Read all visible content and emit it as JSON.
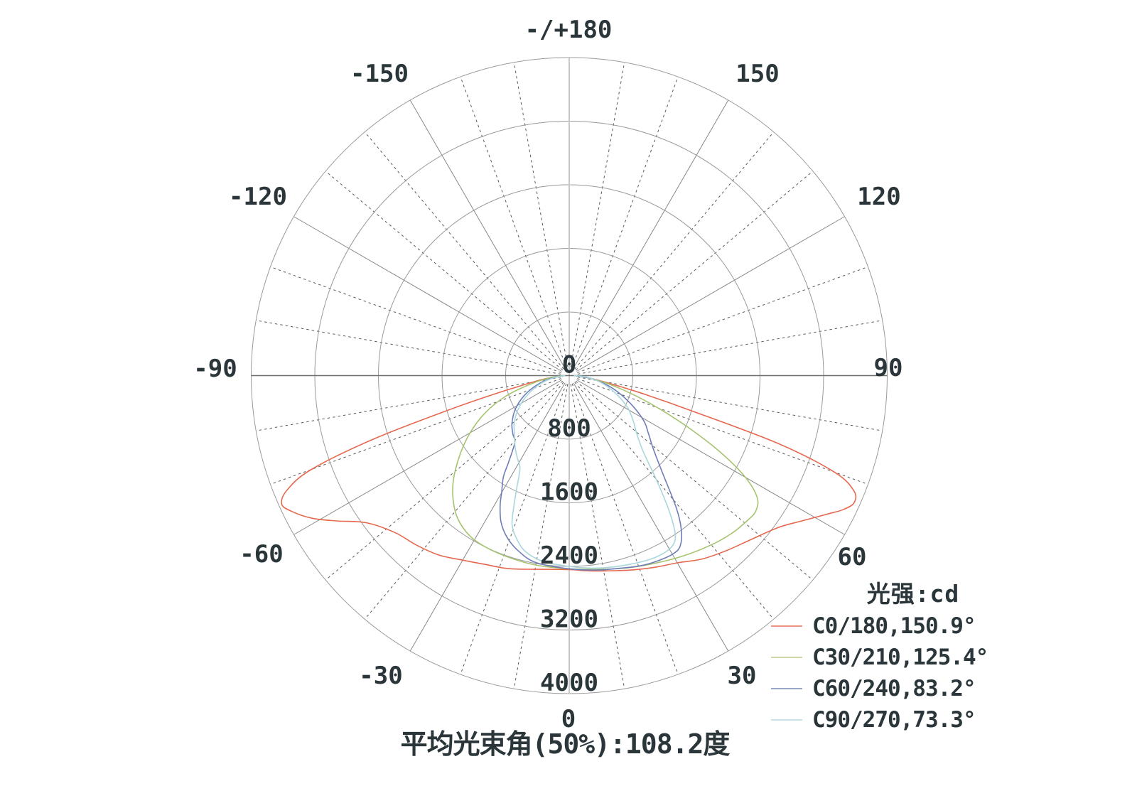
{
  "annotation": {
    "beam_angle_text": "平均光束角(50%):108.2度"
  },
  "legend": {
    "title": "光强:cd",
    "entries": [
      {
        "label": "C0/180,150.9°",
        "swatch_color": "#eb9480"
      },
      {
        "label": "C30/210,125.4°",
        "swatch_color": "#ccd9a4"
      },
      {
        "label": "C60/240,83.2°",
        "swatch_color": "#9aa6c8"
      },
      {
        "label": "C90/270,73.3°",
        "swatch_color": "#c6e2e6"
      }
    ]
  },
  "colors": {
    "text": "#2b363b",
    "ring_grid": "#9a9a9a",
    "radial_solid": "#888888",
    "radial_dashed": "#5a5a5a",
    "horizontal_axis": "#6e6e6e",
    "vertical_axis": "#c8c8c8"
  },
  "chart_data": {
    "type": "line",
    "subtype": "polar-intensity-distribution",
    "units": "cd",
    "title": "光强:cd",
    "angle_ticks": [
      {
        "angle": 180,
        "label": "-/+180"
      },
      {
        "angle": 150,
        "label": "150"
      },
      {
        "angle": 120,
        "label": "120"
      },
      {
        "angle": 90,
        "label": "90"
      },
      {
        "angle": 60,
        "label": "60"
      },
      {
        "angle": 30,
        "label": "30"
      },
      {
        "angle": 0,
        "label": "0"
      },
      {
        "angle": -30,
        "label": "-30"
      },
      {
        "angle": -60,
        "label": "-60"
      },
      {
        "angle": -90,
        "label": "-90"
      },
      {
        "angle": -120,
        "label": "-120"
      },
      {
        "angle": -150,
        "label": "-150"
      }
    ],
    "radial_ticks": [
      0,
      800,
      1600,
      2400,
      3200,
      4000
    ],
    "radial_max": 4000,
    "grid": {
      "ring_step_cd": 800,
      "radial_line_step_deg": 10,
      "solid_line_step_deg": 30,
      "grid_on": true
    },
    "legend_position": "bottom-right",
    "series": [
      {
        "name": "C0/180,150.9°",
        "color": "#e5684f",
        "points": [
          [
            -90,
            60
          ],
          [
            -86,
            150
          ],
          [
            -82,
            330
          ],
          [
            -78,
            640
          ],
          [
            -76,
            1000
          ],
          [
            -74,
            1600
          ],
          [
            -72,
            2600
          ],
          [
            -70,
            3450
          ],
          [
            -68,
            3820
          ],
          [
            -66,
            3960
          ],
          [
            -64,
            3890
          ],
          [
            -61,
            3700
          ],
          [
            -58,
            3450
          ],
          [
            -54,
            3150
          ],
          [
            -48,
            2950
          ],
          [
            -42,
            2870
          ],
          [
            -36,
            2790
          ],
          [
            -30,
            2680
          ],
          [
            -24,
            2600
          ],
          [
            -18,
            2550
          ],
          [
            -12,
            2490
          ],
          [
            -6,
            2450
          ],
          [
            0,
            2440
          ],
          [
            6,
            2470
          ],
          [
            12,
            2510
          ],
          [
            18,
            2570
          ],
          [
            24,
            2640
          ],
          [
            30,
            2720
          ],
          [
            36,
            2850
          ],
          [
            42,
            2960
          ],
          [
            48,
            3080
          ],
          [
            54,
            3250
          ],
          [
            58,
            3450
          ],
          [
            62,
            3700
          ],
          [
            64,
            3840
          ],
          [
            66,
            3925
          ],
          [
            68,
            3860
          ],
          [
            70,
            3550
          ],
          [
            72,
            2760
          ],
          [
            74,
            1580
          ],
          [
            76,
            1000
          ],
          [
            78,
            640
          ],
          [
            82,
            310
          ],
          [
            86,
            150
          ],
          [
            90,
            60
          ]
        ]
      },
      {
        "name": "C30/210,125.4°",
        "color": "#a6c36f",
        "points": [
          [
            -90,
            55
          ],
          [
            -84,
            230
          ],
          [
            -78,
            480
          ],
          [
            -72,
            840
          ],
          [
            -66,
            1160
          ],
          [
            -60,
            1440
          ],
          [
            -54,
            1700
          ],
          [
            -48,
            1960
          ],
          [
            -43,
            2140
          ],
          [
            -38,
            2280
          ],
          [
            -32,
            2370
          ],
          [
            -26,
            2400
          ],
          [
            -18,
            2410
          ],
          [
            -10,
            2420
          ],
          [
            0,
            2430
          ],
          [
            8,
            2460
          ],
          [
            16,
            2520
          ],
          [
            24,
            2590
          ],
          [
            32,
            2680
          ],
          [
            40,
            2780
          ],
          [
            46,
            2850
          ],
          [
            51,
            2890
          ],
          [
            54,
            2900
          ],
          [
            57,
            2820
          ],
          [
            60,
            2560
          ],
          [
            63,
            2150
          ],
          [
            66,
            1700
          ],
          [
            69,
            1300
          ],
          [
            72,
            980
          ],
          [
            76,
            640
          ],
          [
            80,
            400
          ],
          [
            85,
            190
          ],
          [
            90,
            55
          ]
        ]
      },
      {
        "name": "C60/240,83.2°",
        "color": "#6f7eb9",
        "points": [
          [
            -90,
            50
          ],
          [
            -82,
            220
          ],
          [
            -74,
            420
          ],
          [
            -66,
            620
          ],
          [
            -58,
            800
          ],
          [
            -50,
            940
          ],
          [
            -44,
            1020
          ],
          [
            -39,
            1090
          ],
          [
            -35,
            1330
          ],
          [
            -33,
            1520
          ],
          [
            -30,
            1700
          ],
          [
            -28,
            1850
          ],
          [
            -25,
            2030
          ],
          [
            -21,
            2180
          ],
          [
            -16,
            2300
          ],
          [
            -10,
            2390
          ],
          [
            0,
            2430
          ],
          [
            8,
            2470
          ],
          [
            14,
            2500
          ],
          [
            20,
            2550
          ],
          [
            25,
            2580
          ],
          [
            30,
            2595
          ],
          [
            33,
            2560
          ],
          [
            36,
            2400
          ],
          [
            39,
            2140
          ],
          [
            44,
            1680
          ],
          [
            49,
            1400
          ],
          [
            54,
            1230
          ],
          [
            59,
            1090
          ],
          [
            66,
            830
          ],
          [
            74,
            560
          ],
          [
            82,
            290
          ],
          [
            90,
            60
          ]
        ]
      },
      {
        "name": "C90/270,73.3°",
        "color": "#a9d7de",
        "points": [
          [
            -90,
            50
          ],
          [
            -82,
            200
          ],
          [
            -74,
            380
          ],
          [
            -66,
            560
          ],
          [
            -58,
            740
          ],
          [
            -50,
            900
          ],
          [
            -43,
            1010
          ],
          [
            -37,
            1130
          ],
          [
            -32,
            1230
          ],
          [
            -28,
            1320
          ],
          [
            -25,
            1560
          ],
          [
            -23,
            1780
          ],
          [
            -21,
            2005
          ],
          [
            -18,
            2150
          ],
          [
            -14,
            2280
          ],
          [
            -8,
            2360
          ],
          [
            0,
            2400
          ],
          [
            7,
            2440
          ],
          [
            13,
            2470
          ],
          [
            19,
            2500
          ],
          [
            25,
            2530
          ],
          [
            30,
            2520
          ],
          [
            33,
            2450
          ],
          [
            35,
            2280
          ],
          [
            37,
            2050
          ],
          [
            40,
            1700
          ],
          [
            44,
            1350
          ],
          [
            49,
            1130
          ],
          [
            55,
            980
          ],
          [
            62,
            820
          ],
          [
            70,
            600
          ],
          [
            78,
            400
          ],
          [
            85,
            220
          ],
          [
            90,
            60
          ]
        ]
      }
    ]
  }
}
